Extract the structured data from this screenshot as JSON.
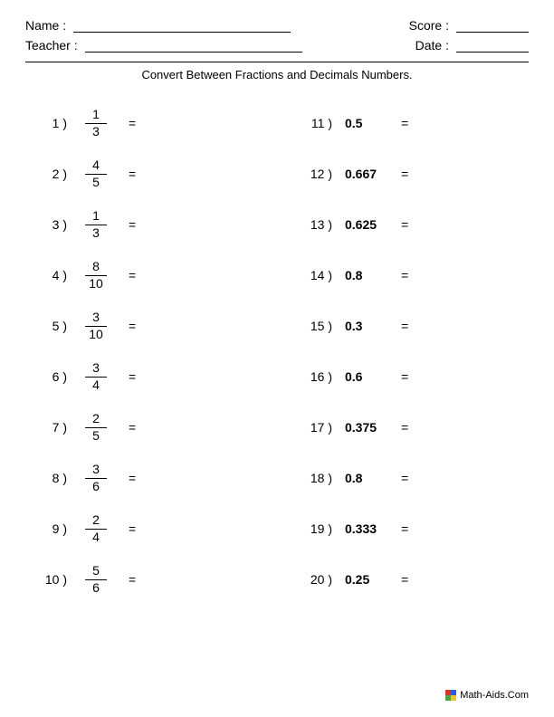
{
  "header": {
    "name_label": "Name :",
    "teacher_label": "Teacher :",
    "score_label": "Score :",
    "date_label": "Date :"
  },
  "title": "Convert Between Fractions and Decimals Numbers.",
  "left_problems": [
    {
      "n": "1 )",
      "num": "1",
      "den": "3"
    },
    {
      "n": "2 )",
      "num": "4",
      "den": "5"
    },
    {
      "n": "3 )",
      "num": "1",
      "den": "3"
    },
    {
      "n": "4 )",
      "num": "8",
      "den": "10"
    },
    {
      "n": "5 )",
      "num": "3",
      "den": "10"
    },
    {
      "n": "6 )",
      "num": "3",
      "den": "4"
    },
    {
      "n": "7 )",
      "num": "2",
      "den": "5"
    },
    {
      "n": "8 )",
      "num": "3",
      "den": "6"
    },
    {
      "n": "9 )",
      "num": "2",
      "den": "4"
    },
    {
      "n": "10 )",
      "num": "5",
      "den": "6"
    }
  ],
  "right_problems": [
    {
      "n": "11 )",
      "val": "0.5"
    },
    {
      "n": "12 )",
      "val": "0.667"
    },
    {
      "n": "13 )",
      "val": "0.625"
    },
    {
      "n": "14 )",
      "val": "0.8"
    },
    {
      "n": "15 )",
      "val": "0.3"
    },
    {
      "n": "16 )",
      "val": "0.6"
    },
    {
      "n": "17 )",
      "val": "0.375"
    },
    {
      "n": "18 )",
      "val": "0.8"
    },
    {
      "n": "19 )",
      "val": "0.333"
    },
    {
      "n": "20 )",
      "val": "0.25"
    }
  ],
  "equals": "=",
  "footer": "Math-Aids.Com"
}
